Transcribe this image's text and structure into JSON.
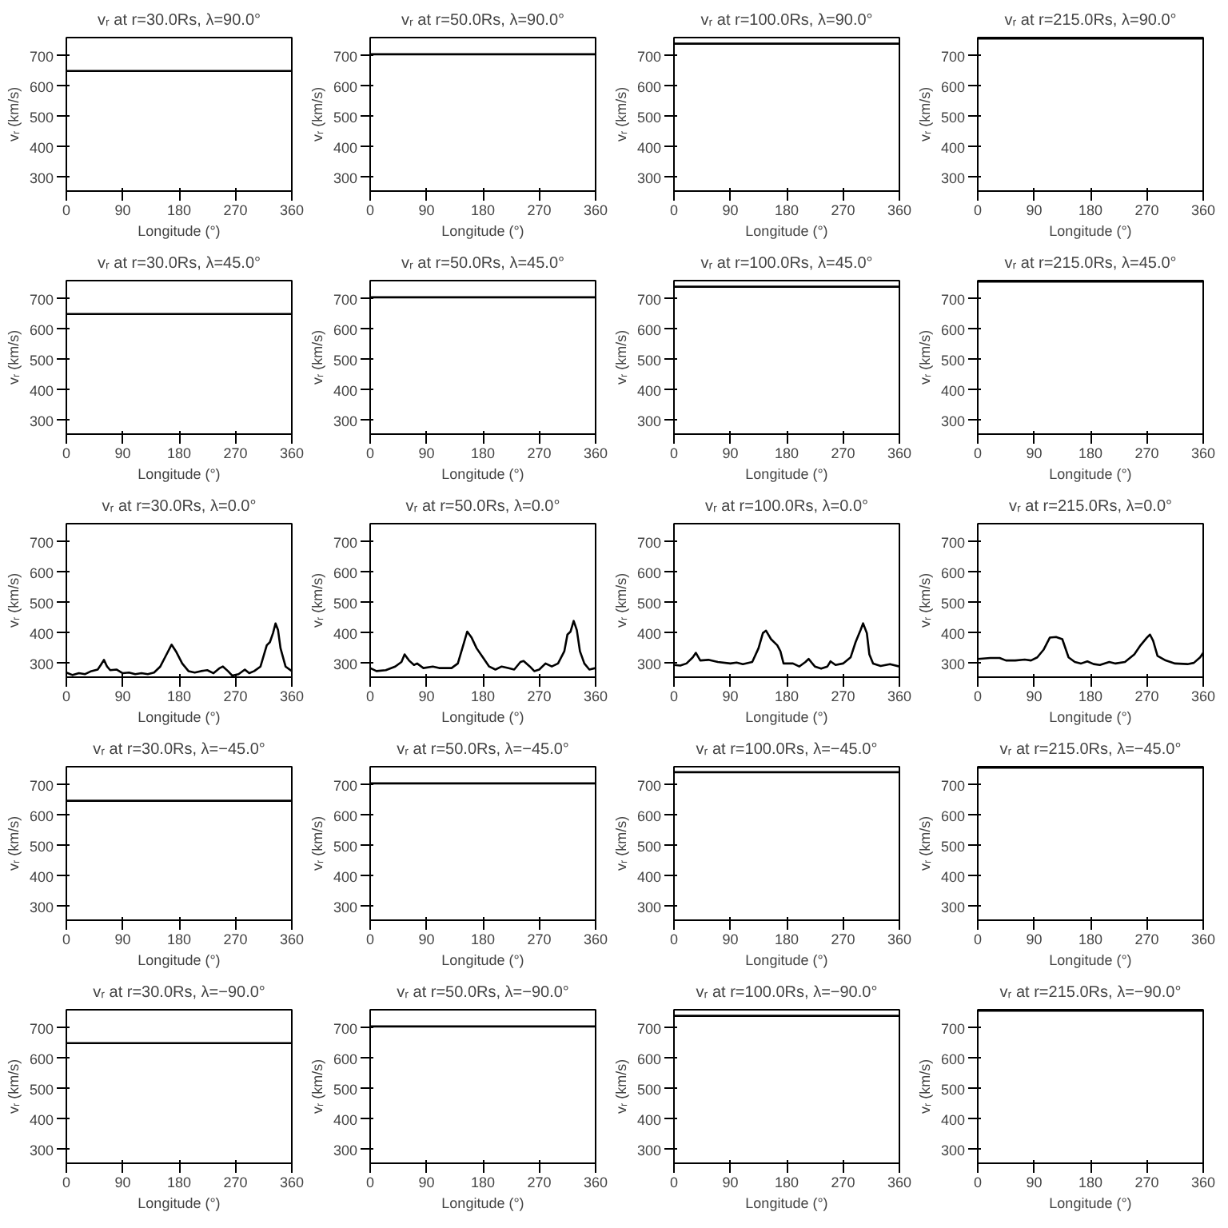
{
  "chart_data": [
    {
      "type": "line",
      "title": "vᵣ at r=30.0Rs, λ=90.0°",
      "xlabel": "Longitude (°)",
      "ylabel": "vᵣ (km/s)",
      "x": [
        0,
        360
      ],
      "values": [
        650,
        650
      ],
      "color": "#000000",
      "xlim": [
        0,
        360
      ],
      "ylim": [
        255,
        760
      ],
      "xticks": [
        0,
        90,
        180,
        270,
        360
      ],
      "yticks": [
        300,
        400,
        500,
        600,
        700
      ]
    },
    {
      "type": "line",
      "title": "vᵣ at r=50.0Rs, λ=90.0°",
      "xlabel": "Longitude (°)",
      "ylabel": "vᵣ (km/s)",
      "x": [
        0,
        360
      ],
      "values": [
        705,
        705
      ],
      "color": "#000000",
      "xlim": [
        0,
        360
      ],
      "ylim": [
        255,
        760
      ],
      "xticks": [
        0,
        90,
        180,
        270,
        360
      ],
      "yticks": [
        300,
        400,
        500,
        600,
        700
      ]
    },
    {
      "type": "line",
      "title": "vᵣ at r=100.0Rs, λ=90.0°",
      "xlabel": "Longitude (°)",
      "ylabel": "vᵣ (km/s)",
      "x": [
        0,
        360
      ],
      "values": [
        740,
        740
      ],
      "color": "#000000",
      "xlim": [
        0,
        360
      ],
      "ylim": [
        255,
        760
      ],
      "xticks": [
        0,
        90,
        180,
        270,
        360
      ],
      "yticks": [
        300,
        400,
        500,
        600,
        700
      ]
    },
    {
      "type": "line",
      "title": "vᵣ at r=215.0Rs, λ=90.0°",
      "xlabel": "Longitude (°)",
      "ylabel": "vᵣ (km/s)",
      "x": [
        0,
        360
      ],
      "values": [
        757,
        757
      ],
      "color": "#000000",
      "xlim": [
        0,
        360
      ],
      "ylim": [
        255,
        760
      ],
      "xticks": [
        0,
        90,
        180,
        270,
        360
      ],
      "yticks": [
        300,
        400,
        500,
        600,
        700
      ]
    },
    {
      "type": "line",
      "title": "vᵣ at r=30.0Rs, λ=45.0°",
      "xlabel": "Longitude (°)",
      "ylabel": "vᵣ (km/s)",
      "x": [
        0,
        360
      ],
      "values": [
        650,
        650
      ],
      "color": "#000000",
      "xlim": [
        0,
        360
      ],
      "ylim": [
        255,
        760
      ],
      "xticks": [
        0,
        90,
        180,
        270,
        360
      ],
      "yticks": [
        300,
        400,
        500,
        600,
        700
      ]
    },
    {
      "type": "line",
      "title": "vᵣ at r=50.0Rs, λ=45.0°",
      "xlabel": "Longitude (°)",
      "ylabel": "vᵣ (km/s)",
      "x": [
        0,
        360
      ],
      "values": [
        705,
        705
      ],
      "color": "#000000",
      "xlim": [
        0,
        360
      ],
      "ylim": [
        255,
        760
      ],
      "xticks": [
        0,
        90,
        180,
        270,
        360
      ],
      "yticks": [
        300,
        400,
        500,
        600,
        700
      ]
    },
    {
      "type": "line",
      "title": "vᵣ at r=100.0Rs, λ=45.0°",
      "xlabel": "Longitude (°)",
      "ylabel": "vᵣ (km/s)",
      "x": [
        0,
        360
      ],
      "values": [
        740,
        740
      ],
      "color": "#000000",
      "xlim": [
        0,
        360
      ],
      "ylim": [
        255,
        760
      ],
      "xticks": [
        0,
        90,
        180,
        270,
        360
      ],
      "yticks": [
        300,
        400,
        500,
        600,
        700
      ]
    },
    {
      "type": "line",
      "title": "vᵣ at r=215.0Rs, λ=45.0°",
      "xlabel": "Longitude (°)",
      "ylabel": "vᵣ (km/s)",
      "x": [
        0,
        360
      ],
      "values": [
        757,
        757
      ],
      "color": "#000000",
      "xlim": [
        0,
        360
      ],
      "ylim": [
        255,
        760
      ],
      "xticks": [
        0,
        90,
        180,
        270,
        360
      ],
      "yticks": [
        300,
        400,
        500,
        600,
        700
      ]
    },
    {
      "type": "line",
      "title": "vᵣ at r=30.0Rs, λ=0.0°",
      "xlabel": "Longitude (°)",
      "ylabel": "vᵣ (km/s)",
      "x": [
        0,
        10,
        20,
        30,
        40,
        50,
        55,
        60,
        65,
        70,
        80,
        90,
        100,
        110,
        120,
        130,
        140,
        150,
        160,
        168,
        175,
        185,
        195,
        205,
        215,
        225,
        235,
        245,
        250,
        258,
        265,
        275,
        285,
        292,
        300,
        310,
        320,
        325,
        330,
        334,
        338,
        342,
        350,
        360
      ],
      "values": [
        270,
        262,
        268,
        265,
        275,
        280,
        295,
        312,
        290,
        278,
        280,
        268,
        270,
        265,
        268,
        265,
        270,
        290,
        330,
        362,
        340,
        300,
        275,
        270,
        275,
        278,
        268,
        285,
        290,
        275,
        260,
        265,
        280,
        268,
        275,
        290,
        360,
        370,
        400,
        432,
        410,
        350,
        290,
        275
      ],
      "color": "#000000",
      "xlim": [
        0,
        360
      ],
      "ylim": [
        255,
        760
      ],
      "xticks": [
        0,
        90,
        180,
        270,
        360
      ],
      "yticks": [
        300,
        400,
        500,
        600,
        700
      ]
    },
    {
      "type": "line",
      "title": "vᵣ at r=50.0Rs, λ=0.0°",
      "xlabel": "Longitude (°)",
      "ylabel": "vᵣ (km/s)",
      "x": [
        0,
        10,
        25,
        40,
        50,
        55,
        62,
        70,
        75,
        85,
        100,
        110,
        130,
        140,
        150,
        155,
        162,
        170,
        180,
        190,
        200,
        210,
        220,
        230,
        240,
        245,
        255,
        262,
        270,
        280,
        290,
        300,
        310,
        315,
        320,
        325,
        330,
        335,
        342,
        350,
        360
      ],
      "values": [
        285,
        275,
        278,
        290,
        305,
        330,
        310,
        295,
        300,
        285,
        290,
        285,
        285,
        300,
        370,
        405,
        385,
        350,
        320,
        290,
        280,
        290,
        285,
        280,
        305,
        308,
        290,
        275,
        280,
        300,
        290,
        300,
        340,
        395,
        405,
        440,
        410,
        340,
        300,
        280,
        285
      ],
      "color": "#000000",
      "xlim": [
        0,
        360
      ],
      "ylim": [
        255,
        760
      ],
      "xticks": [
        0,
        90,
        180,
        270,
        360
      ],
      "yticks": [
        300,
        400,
        500,
        600,
        700
      ]
    },
    {
      "type": "line",
      "title": "vᵣ at r=100.0Rs, λ=0.0°",
      "xlabel": "Longitude (°)",
      "ylabel": "vᵣ (km/s)",
      "x": [
        0,
        10,
        20,
        30,
        35,
        42,
        55,
        70,
        90,
        100,
        110,
        125,
        135,
        142,
        147,
        155,
        165,
        170,
        175,
        190,
        200,
        210,
        215,
        225,
        235,
        245,
        250,
        258,
        270,
        282,
        290,
        298,
        302,
        308,
        312,
        318,
        330,
        345,
        360
      ],
      "values": [
        295,
        293,
        300,
        320,
        335,
        310,
        312,
        305,
        300,
        303,
        298,
        305,
        350,
        400,
        408,
        380,
        360,
        340,
        300,
        300,
        290,
        305,
        315,
        290,
        283,
        290,
        307,
        295,
        300,
        320,
        370,
        410,
        432,
        400,
        330,
        300,
        292,
        298,
        290
      ],
      "color": "#000000",
      "xlim": [
        0,
        360
      ],
      "ylim": [
        255,
        760
      ],
      "xticks": [
        0,
        90,
        180,
        270,
        360
      ],
      "yticks": [
        300,
        400,
        500,
        600,
        700
      ]
    },
    {
      "type": "line",
      "title": "vᵣ at r=215.0Rs, λ=0.0°",
      "xlabel": "Longitude (°)",
      "ylabel": "vᵣ (km/s)",
      "x": [
        0,
        20,
        35,
        45,
        60,
        75,
        85,
        95,
        105,
        115,
        125,
        135,
        145,
        155,
        165,
        175,
        185,
        195,
        210,
        220,
        235,
        250,
        260,
        270,
        275,
        280,
        287,
        300,
        315,
        335,
        345,
        355,
        360
      ],
      "values": [
        315,
        318,
        318,
        310,
        310,
        313,
        310,
        320,
        345,
        385,
        387,
        380,
        320,
        305,
        300,
        307,
        298,
        295,
        305,
        300,
        305,
        330,
        360,
        385,
        395,
        375,
        325,
        310,
        300,
        298,
        302,
        320,
        335
      ],
      "color": "#000000",
      "xlim": [
        0,
        360
      ],
      "ylim": [
        255,
        760
      ],
      "xticks": [
        0,
        90,
        180,
        270,
        360
      ],
      "yticks": [
        300,
        400,
        500,
        600,
        700
      ]
    },
    {
      "type": "line",
      "title": "vᵣ at r=30.0Rs, λ=−45.0°",
      "xlabel": "Longitude (°)",
      "ylabel": "vᵣ (km/s)",
      "x": [
        0,
        360
      ],
      "values": [
        648,
        648
      ],
      "color": "#000000",
      "xlim": [
        0,
        360
      ],
      "ylim": [
        255,
        760
      ],
      "xticks": [
        0,
        90,
        180,
        270,
        360
      ],
      "yticks": [
        300,
        400,
        500,
        600,
        700
      ]
    },
    {
      "type": "line",
      "title": "vᵣ at r=50.0Rs, λ=−45.0°",
      "xlabel": "Longitude (°)",
      "ylabel": "vᵣ (km/s)",
      "x": [
        0,
        360
      ],
      "values": [
        705,
        705
      ],
      "color": "#000000",
      "xlim": [
        0,
        360
      ],
      "ylim": [
        255,
        760
      ],
      "xticks": [
        0,
        90,
        180,
        270,
        360
      ],
      "yticks": [
        300,
        400,
        500,
        600,
        700
      ]
    },
    {
      "type": "line",
      "title": "vᵣ at r=100.0Rs, λ=−45.0°",
      "xlabel": "Longitude (°)",
      "ylabel": "vᵣ (km/s)",
      "x": [
        0,
        360
      ],
      "values": [
        742,
        742
      ],
      "color": "#000000",
      "xlim": [
        0,
        360
      ],
      "ylim": [
        255,
        760
      ],
      "xticks": [
        0,
        90,
        180,
        270,
        360
      ],
      "yticks": [
        300,
        400,
        500,
        600,
        700
      ]
    },
    {
      "type": "line",
      "title": "vᵣ at r=215.0Rs, λ=−45.0°",
      "xlabel": "Longitude (°)",
      "ylabel": "vᵣ (km/s)",
      "x": [
        0,
        360
      ],
      "values": [
        757,
        757
      ],
      "color": "#000000",
      "xlim": [
        0,
        360
      ],
      "ylim": [
        255,
        760
      ],
      "xticks": [
        0,
        90,
        180,
        270,
        360
      ],
      "yticks": [
        300,
        400,
        500,
        600,
        700
      ]
    },
    {
      "type": "line",
      "title": "vᵣ at r=30.0Rs, λ=−90.0°",
      "xlabel": "Longitude (°)",
      "ylabel": "vᵣ (km/s)",
      "x": [
        0,
        360
      ],
      "values": [
        650,
        650
      ],
      "color": "#000000",
      "xlim": [
        0,
        360
      ],
      "ylim": [
        255,
        760
      ],
      "xticks": [
        0,
        90,
        180,
        270,
        360
      ],
      "yticks": [
        300,
        400,
        500,
        600,
        700
      ]
    },
    {
      "type": "line",
      "title": "vᵣ at r=50.0Rs, λ=−90.0°",
      "xlabel": "Longitude (°)",
      "ylabel": "vᵣ (km/s)",
      "x": [
        0,
        360
      ],
      "values": [
        705,
        705
      ],
      "color": "#000000",
      "xlim": [
        0,
        360
      ],
      "ylim": [
        255,
        760
      ],
      "xticks": [
        0,
        90,
        180,
        270,
        360
      ],
      "yticks": [
        300,
        400,
        500,
        600,
        700
      ]
    },
    {
      "type": "line",
      "title": "vᵣ at r=100.0Rs, λ=−90.0°",
      "xlabel": "Longitude (°)",
      "ylabel": "vᵣ (km/s)",
      "x": [
        0,
        360
      ],
      "values": [
        740,
        740
      ],
      "color": "#000000",
      "xlim": [
        0,
        360
      ],
      "ylim": [
        255,
        760
      ],
      "xticks": [
        0,
        90,
        180,
        270,
        360
      ],
      "yticks": [
        300,
        400,
        500,
        600,
        700
      ]
    },
    {
      "type": "line",
      "title": "vᵣ at r=215.0Rs, λ=−90.0°",
      "xlabel": "Longitude (°)",
      "ylabel": "vᵣ (km/s)",
      "x": [
        0,
        360
      ],
      "values": [
        757,
        757
      ],
      "color": "#000000",
      "xlim": [
        0,
        360
      ],
      "ylim": [
        255,
        760
      ],
      "xticks": [
        0,
        90,
        180,
        270,
        360
      ],
      "yticks": [
        300,
        400,
        500,
        600,
        700
      ]
    }
  ]
}
